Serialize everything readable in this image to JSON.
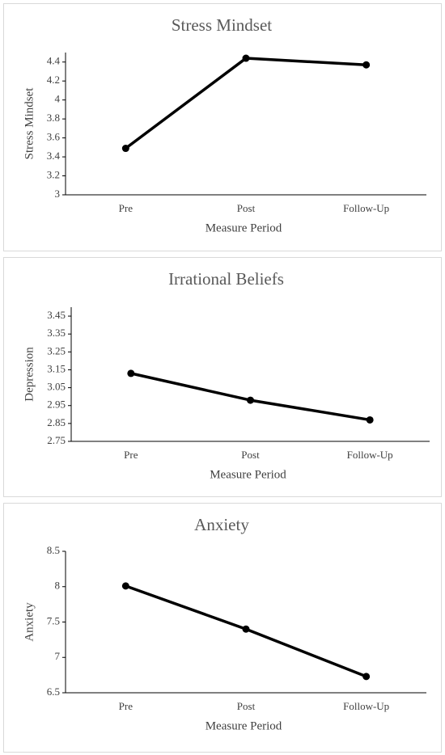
{
  "chart_data": [
    {
      "type": "line",
      "title": "Stress Mindset",
      "x_label": "Measure Period",
      "y_label": "Stress Mindset",
      "categories": [
        "Pre",
        "Post",
        "Follow-Up"
      ],
      "values": [
        3.49,
        4.44,
        4.37
      ],
      "color": "#000000",
      "ylim": [
        3,
        4.5
      ],
      "yticks": [
        3,
        3.2,
        3.4,
        3.6,
        3.8,
        4,
        4.2,
        4.4
      ]
    },
    {
      "type": "line",
      "title": "Irrational Beliefs",
      "x_label": "Measure Period",
      "y_label": "Depression",
      "categories": [
        "Pre",
        "Post",
        "Follow-Up"
      ],
      "values": [
        3.13,
        2.98,
        2.87
      ],
      "color": "#000000",
      "ylim": [
        2.75,
        3.5
      ],
      "yticks": [
        2.75,
        2.85,
        2.95,
        3.05,
        3.15,
        3.25,
        3.35,
        3.45
      ]
    },
    {
      "type": "line",
      "title": "Anxiety",
      "x_label": "Measure Period",
      "y_label": "Anxiety",
      "categories": [
        "Pre",
        "Post",
        "Follow-Up"
      ],
      "values": [
        8.01,
        7.4,
        6.73
      ],
      "color": "#000000",
      "ylim": [
        6.5,
        8.5
      ],
      "yticks": [
        6.5,
        7,
        7.5,
        8,
        8.5
      ]
    }
  ]
}
